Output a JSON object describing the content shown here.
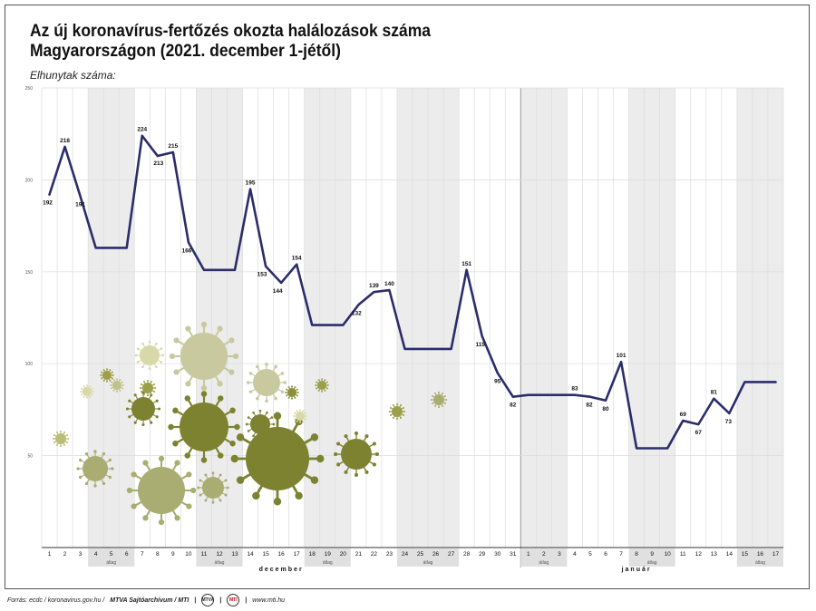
{
  "title": "Az új koronavírus-fertőzés okozta halálozások száma Magyarországon (2021. december 1-jétől)",
  "ylabel": "Elhunytak száma:",
  "footer": {
    "source": "Forrás: ecdc / koronavirus.gov.hu /",
    "archive": "MTVA Sajtóarchívum / MTI",
    "logo1": "MTVA",
    "logo2": "MTI",
    "url": "www.mti.hu"
  },
  "chart_data": {
    "type": "line",
    "title": "Az új koronavírus-fertőzés okozta halálozások száma Magyarországon (2021. december 1-jétől)",
    "ylabel": "Elhunytak száma:",
    "ylim": [
      0,
      250
    ],
    "yticks": [
      50,
      100,
      150,
      200,
      250
    ],
    "color": "#2b2d6b",
    "months": [
      "december",
      "január"
    ],
    "avg_label": "átlag",
    "x": [
      "1",
      "2",
      "3",
      "4",
      "5",
      "6",
      "7",
      "8",
      "9",
      "10",
      "11",
      "12",
      "13",
      "14",
      "15",
      "16",
      "17",
      "18",
      "19",
      "20",
      "21",
      "22",
      "23",
      "24",
      "25",
      "26",
      "27",
      "28",
      "29",
      "30",
      "31",
      "1",
      "2",
      "3",
      "4",
      "5",
      "6",
      "7",
      "8",
      "9",
      "10",
      "11",
      "12",
      "13",
      "14",
      "15",
      "16",
      "17"
    ],
    "values": [
      192,
      218,
      191,
      163,
      163,
      163,
      224,
      213,
      215,
      166,
      151,
      151,
      151,
      195,
      153,
      144,
      154,
      121,
      121,
      121,
      132,
      139,
      140,
      108,
      108,
      108,
      108,
      151,
      115,
      95,
      82,
      83,
      83,
      83,
      83,
      82,
      80,
      101,
      54,
      54,
      54,
      69,
      67,
      81,
      73,
      90,
      90,
      90
    ],
    "labels": [
      "192",
      "218",
      "191",
      null,
      null,
      null,
      "224",
      "213",
      "215",
      "166",
      null,
      null,
      null,
      "195",
      "153",
      "144",
      "154",
      null,
      null,
      null,
      "132",
      "139",
      "140",
      null,
      null,
      null,
      null,
      "151",
      "115",
      "95",
      "82",
      null,
      null,
      null,
      "83",
      "82",
      "80",
      "101",
      null,
      null,
      null,
      "69",
      "67",
      "81",
      "73",
      null,
      null,
      null
    ],
    "average_groups": [
      [
        4,
        6
      ],
      [
        11,
        13
      ],
      [
        18,
        20
      ],
      [
        24,
        27
      ],
      [
        32,
        34
      ],
      [
        39,
        41
      ],
      [
        46,
        48
      ]
    ]
  }
}
